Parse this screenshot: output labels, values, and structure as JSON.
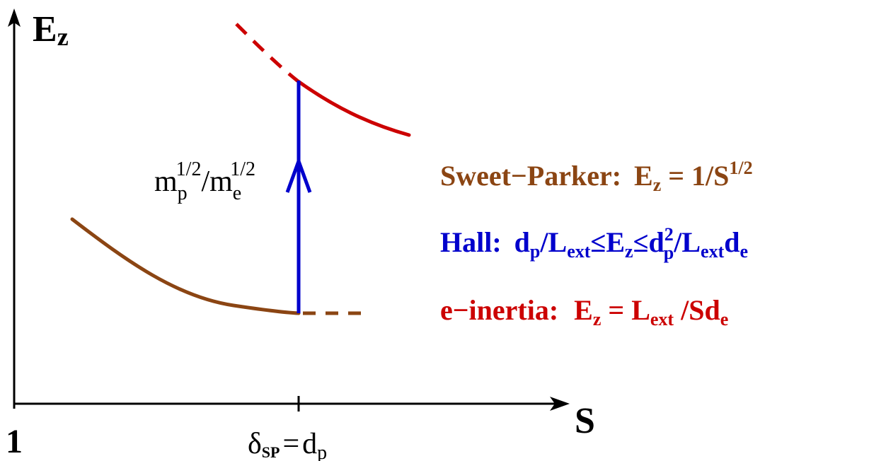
{
  "axes": {
    "y_label": "E",
    "y_label_sub": "z",
    "x_label": "S",
    "origin_label": "1",
    "tick_label_delta": "δ",
    "tick_label_delta_sub": "SP",
    "tick_label_eq": "=",
    "tick_label_d": "d",
    "tick_label_d_sub": "p"
  },
  "arrow_label": {
    "m1": "m",
    "m1_sub": "p",
    "m1_sup": "1/2",
    "slash": "/",
    "m2": "m",
    "m2_sub": "e",
    "m2_sup": "1/2"
  },
  "legend": {
    "sweet_parker": {
      "name": "Sweet−Parker:",
      "formula_pre": "E",
      "formula_pre_sub": "z",
      "formula_mid": " = 1/S",
      "formula_sup": "1/2",
      "color": "#8B4513"
    },
    "hall": {
      "name": "Hall:",
      "p1": "d",
      "p1_sub": "p",
      "p2": "/L",
      "p2_sub": "ext",
      "leq1": "≤",
      "p3": "E",
      "p3_sub": "z",
      "leq2": "≤",
      "p4": "d",
      "p4_sup": "2",
      "p4_sub": "p",
      "p5": "/L",
      "p5_sub": "ext",
      "p6": "d",
      "p6_sub": "e",
      "color": "#0000CC"
    },
    "e_inertia": {
      "name": "e−inertia:",
      "p1": "E",
      "p1_sub": "z",
      "p2": " = L",
      "p2_sub": "ext",
      "p3": " /Sd",
      "p3_sub": "e",
      "color": "#CC0000"
    }
  }
}
